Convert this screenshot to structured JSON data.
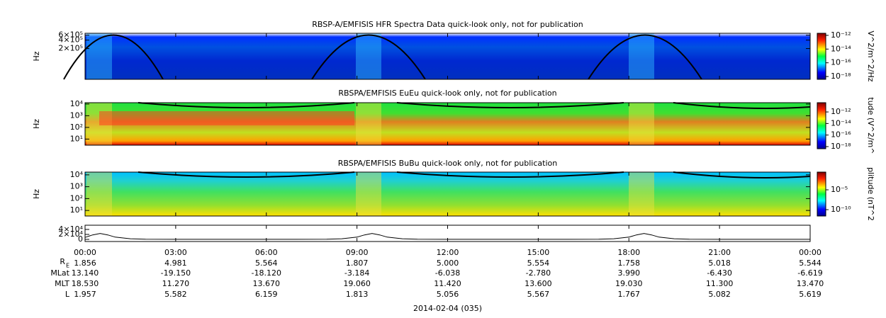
{
  "chart_data": [
    {
      "type": "spectrogram",
      "title": "RBSP-A/EMFISIS  HFR Spectra Data quick-look only, not for publication",
      "ylabel": "Hz",
      "log_y": true,
      "ylim": [
        16000,
        700000
      ],
      "yticks": [
        {
          "value": 600000,
          "label": "6×10⁵"
        },
        {
          "value": 400000,
          "label": "4×10⁵"
        },
        {
          "value": 200000,
          "label": "2×10⁵"
        }
      ],
      "colorbar_label": "V^2/m^2/Hz",
      "clim": [
        3.9e-19,
        2e-12
      ],
      "cticks": [
        {
          "value": 1e-12,
          "label": "10⁻¹²"
        },
        {
          "value": 1e-14,
          "label": "10⁻¹⁴"
        },
        {
          "value": 1e-16,
          "label": "10⁻¹⁶"
        },
        {
          "value": 1e-18,
          "label": "10⁻¹⁸"
        }
      ]
    },
    {
      "type": "spectrogram",
      "title": "RBSPA/EMFISIS  EuEu quick-look only, not for publication",
      "ylabel": "Hz",
      "log_y": true,
      "ylim": [
        3,
        13000
      ],
      "yticks": [
        {
          "value": 10000,
          "label": "10⁴"
        },
        {
          "value": 1000,
          "label": "10³"
        },
        {
          "value": 100,
          "label": "10²"
        },
        {
          "value": 10,
          "label": "10¹"
        }
      ],
      "colorbar_label": "tude (V^2/m^",
      "clim": [
        4.3e-19,
        4e-11
      ],
      "cticks": [
        {
          "value": 1e-12,
          "label": "10⁻¹²"
        },
        {
          "value": 1e-14,
          "label": "10⁻¹⁴"
        },
        {
          "value": 1e-16,
          "label": "10⁻¹⁶"
        },
        {
          "value": 1e-18,
          "label": "10⁻¹⁸"
        }
      ]
    },
    {
      "type": "spectrogram",
      "title": "RBSPA/EMFISIS  BuBu quick-look only, not for publication",
      "ylabel": "Hz",
      "log_y": true,
      "ylim": [
        3.4,
        17000
      ],
      "yticks": [
        {
          "value": 10000,
          "label": "10⁴"
        },
        {
          "value": 1000,
          "label": "10³"
        },
        {
          "value": 100,
          "label": "10²"
        },
        {
          "value": 10,
          "label": "10¹"
        }
      ],
      "colorbar_label": "plitude (nT^2",
      "clim": [
        2.5e-12,
        0.29
      ],
      "cticks": [
        {
          "value": 1e-05,
          "label": "10⁻⁵"
        },
        {
          "value": 1e-10,
          "label": "10⁻¹⁰"
        }
      ]
    },
    {
      "type": "line",
      "color": "#000000",
      "ylim": [
        -8600,
        57000
      ],
      "yticks": [
        {
          "value": 40000,
          "label": "4×10⁴"
        },
        {
          "value": 20000,
          "label": "2×10⁴"
        },
        0
      ],
      "xlim": [
        0,
        24
      ],
      "xticks": [
        {
          "value": 0,
          "label": "00:00"
        },
        {
          "value": 3,
          "label": "03:00"
        },
        {
          "value": 6,
          "label": "06:00"
        },
        {
          "value": 9,
          "label": "09:00"
        },
        {
          "value": 12,
          "label": "12:00"
        },
        {
          "value": 15,
          "label": "15:00"
        },
        {
          "value": 18,
          "label": "18:00"
        },
        {
          "value": 21,
          "label": "21:00"
        },
        {
          "value": 24,
          "label": "00:00"
        }
      ],
      "x": [
        0,
        0.25,
        0.5,
        0.75,
        1,
        1.5,
        2,
        3,
        4,
        5,
        6,
        7,
        8,
        8.5,
        9,
        9.25,
        9.5,
        9.75,
        10,
        10.5,
        11,
        12,
        13,
        14,
        15,
        16,
        17,
        17.5,
        18,
        18.25,
        18.5,
        18.75,
        19,
        19.5,
        20,
        21,
        22,
        23,
        24
      ],
      "values": [
        8000,
        18000,
        24000,
        18000,
        9000,
        2500,
        800,
        300,
        200,
        200,
        200,
        300,
        800,
        2500,
        9000,
        18000,
        24000,
        18000,
        9000,
        2500,
        800,
        300,
        200,
        200,
        200,
        300,
        800,
        2500,
        9000,
        18000,
        24000,
        18000,
        9000,
        2500,
        800,
        300,
        200,
        200,
        300
      ]
    }
  ],
  "ephemeris": {
    "rows": [
      {
        "label": "R",
        "sub": "E",
        "values": [
          "1.856",
          "4.981",
          "5.564",
          "1.807",
          "5.000",
          "5.554",
          "1.758",
          "5.018",
          "5.544"
        ]
      },
      {
        "label": "MLat",
        "values": [
          "13.140",
          "-19.150",
          "-18.120",
          "-3.184",
          "-6.038",
          "-2.780",
          "3.990",
          "-6.430",
          "-6.619"
        ]
      },
      {
        "label": "MLT",
        "values": [
          "18.530",
          "11.270",
          "13.670",
          "19.060",
          "11.420",
          "13.600",
          "19.030",
          "11.300",
          "13.470"
        ]
      },
      {
        "label": "L",
        "values": [
          "1.957",
          "5.582",
          "6.159",
          "1.813",
          "5.056",
          "5.567",
          "1.767",
          "5.082",
          "5.619"
        ]
      }
    ]
  },
  "date_label": "2014-02-04 (035)"
}
